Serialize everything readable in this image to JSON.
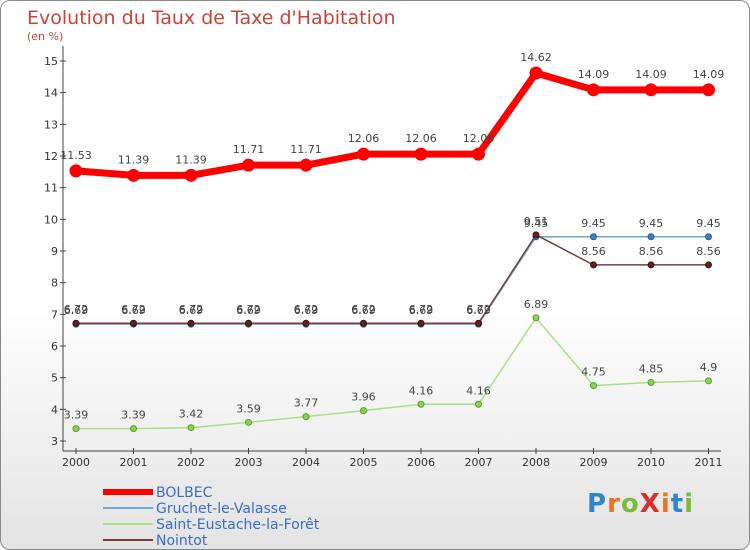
{
  "chart_data": {
    "type": "line",
    "title": "Evolution du Taux de Taxe d'Habitation",
    "ylabel": "(en %)",
    "xlabel": "",
    "x": [
      2000,
      2001,
      2002,
      2003,
      2004,
      2005,
      2006,
      2007,
      2008,
      2009,
      2010,
      2011
    ],
    "yticks": [
      3,
      4,
      5,
      6,
      7,
      8,
      9,
      10,
      11,
      12,
      13,
      14,
      15
    ],
    "ylim": [
      3,
      15
    ],
    "grid": false,
    "legend_position": "bottom-left",
    "series": [
      {
        "name": "BOLBEC",
        "color": "#ff0000",
        "labels": [
          "11.53",
          "11.39",
          "11.39",
          "11.71",
          "11.71",
          "12.06",
          "12.06",
          "12.06",
          "14.62",
          "14.09",
          "14.09",
          "14.09"
        ],
        "values": [
          11.53,
          11.39,
          11.39,
          11.71,
          11.71,
          12.06,
          12.06,
          12.06,
          14.62,
          14.09,
          14.09,
          14.09
        ]
      },
      {
        "name": "Gruchet-le-Valasse",
        "color": "#6fa6cf",
        "labels": [
          "6.69",
          "6.69",
          "6.69",
          "6.69",
          "6.69",
          "6.69",
          "6.69",
          "6.69",
          "9.45",
          "9.45",
          "9.45",
          "9.45"
        ],
        "values": [
          6.69,
          6.69,
          6.69,
          6.69,
          6.69,
          6.69,
          6.69,
          6.69,
          9.45,
          9.45,
          9.45,
          9.45
        ]
      },
      {
        "name": "Saint-Eustache-la-Forêt",
        "color": "#a8e084",
        "labels": [
          "3.39",
          "3.39",
          "3.42",
          "3.59",
          "3.77",
          "3.96",
          "4.16",
          "4.16",
          "6.89",
          "4.75",
          "4.85",
          "4.9"
        ],
        "values": [
          3.39,
          3.39,
          3.42,
          3.59,
          3.77,
          3.96,
          4.16,
          4.16,
          6.89,
          4.75,
          4.85,
          4.9
        ]
      },
      {
        "name": "Nointot",
        "color": "#7a3d3d",
        "labels": [
          "6.72",
          "6.72",
          "6.72",
          "6.72",
          "6.72",
          "6.72",
          "6.72",
          "6.72",
          "9.51",
          "8.56",
          "8.56",
          "8.56"
        ],
        "values": [
          6.72,
          6.72,
          6.72,
          6.72,
          6.72,
          6.72,
          6.72,
          6.72,
          9.51,
          8.56,
          8.56,
          8.56
        ]
      }
    ]
  },
  "logo": {
    "text": "ProXiti",
    "letter_colors": [
      "#2e86c8",
      "#e8742a",
      "#7cba3c",
      "#d9302c",
      "#e8742a",
      "#2e86c8",
      "#7cba3c"
    ]
  }
}
